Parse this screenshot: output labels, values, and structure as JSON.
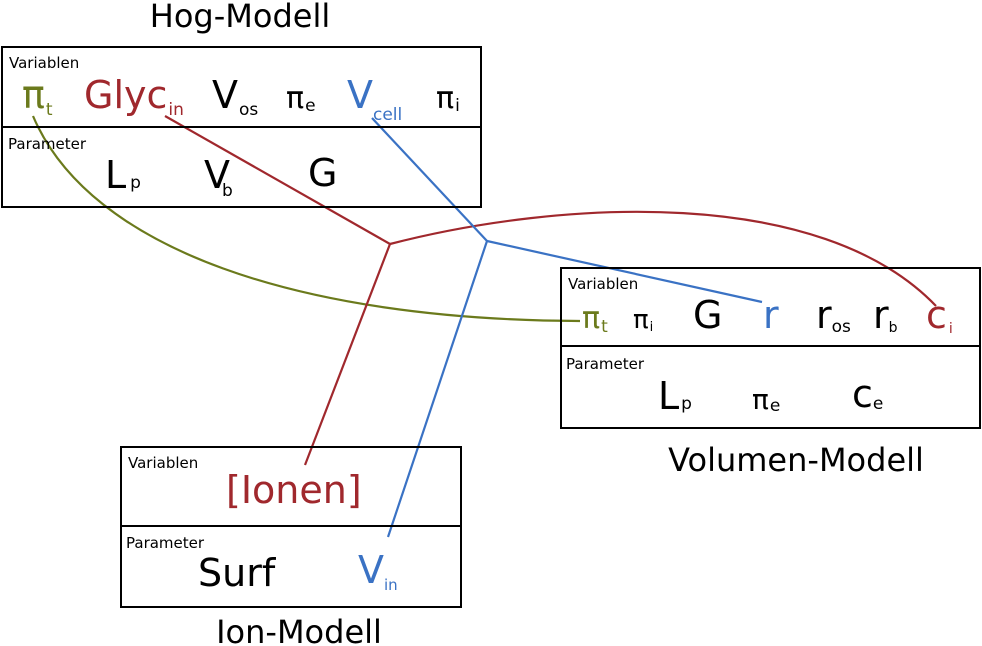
{
  "colors": {
    "black": "#000000",
    "red": "#a0282d",
    "blue": "#3a72c4",
    "green": "#6b7a1c"
  },
  "hog": {
    "title": "Hog-Modell",
    "variables_label": "Variablen",
    "parameter_label": "Parameter",
    "variables": [
      {
        "main": "π",
        "sub": "t",
        "color": "green"
      },
      {
        "main": "Glyc",
        "sub": "in",
        "color": "red"
      },
      {
        "main": "V",
        "sub": "os",
        "color": "black"
      },
      {
        "main": "π",
        "sub": "e",
        "color": "black"
      },
      {
        "main": "V",
        "sub": "cell",
        "color": "blue"
      },
      {
        "main": "π",
        "sub": "i",
        "color": "black"
      }
    ],
    "parameters": [
      {
        "main": "L",
        "sub": "p",
        "color": "black"
      },
      {
        "main": "V",
        "sub": "b",
        "color": "black"
      },
      {
        "main": "G",
        "sub": "",
        "color": "black"
      }
    ]
  },
  "volumen": {
    "title": "Volumen-Modell",
    "variables_label": "Variablen",
    "parameter_label": "Parameter",
    "variables": [
      {
        "main": "π",
        "sub": "t",
        "color": "green"
      },
      {
        "main": "π",
        "sub": "i",
        "color": "black"
      },
      {
        "main": "G",
        "sub": "",
        "color": "black"
      },
      {
        "main": "r",
        "sub": "",
        "color": "blue"
      },
      {
        "main": "r",
        "sub": "os",
        "color": "black"
      },
      {
        "main": "r",
        "sub": "b",
        "color": "black"
      },
      {
        "main": "c",
        "sub": "i",
        "color": "red"
      }
    ],
    "parameters": [
      {
        "main": "L",
        "sub": "p",
        "color": "black"
      },
      {
        "main": "π",
        "sub": "e",
        "color": "black"
      },
      {
        "main": "c",
        "sub": "e",
        "color": "black"
      }
    ]
  },
  "ion": {
    "title": "Ion-Modell",
    "variables_label": "Variablen",
    "parameter_label": "Parameter",
    "variables": [
      {
        "main": "[Ionen]",
        "sub": "",
        "color": "red"
      }
    ],
    "parameters": [
      {
        "main": "Surf",
        "sub": "",
        "color": "black"
      },
      {
        "main": "V",
        "sub": "in",
        "color": "blue"
      }
    ]
  }
}
